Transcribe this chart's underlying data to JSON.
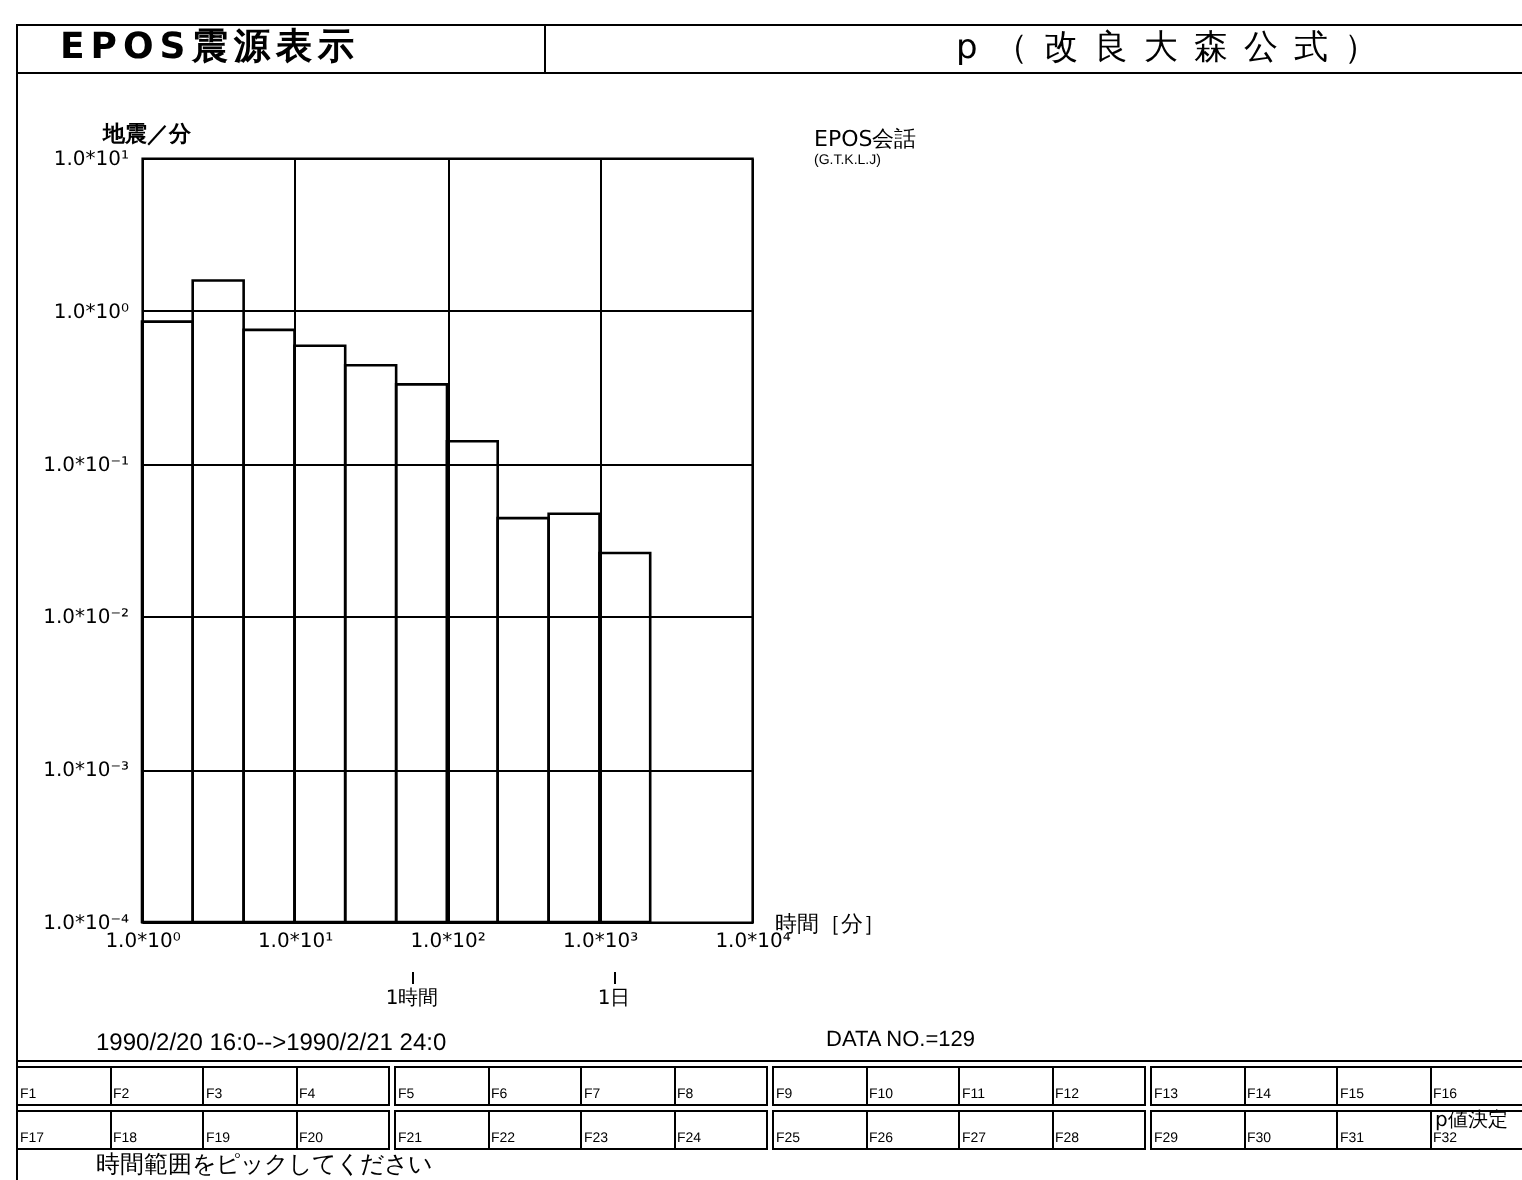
{
  "chart_data": {
    "type": "histogram",
    "title": "EPOS震源表示",
    "subtitle": "p（改良大森公式）",
    "xlabel": "時間［分］",
    "ylabel": "地震／分",
    "bins": [
      1,
      2.15,
      4.64,
      10,
      21.5,
      46.4,
      100,
      215,
      464,
      1000,
      2150
    ],
    "values": [
      0.85,
      1.58,
      0.75,
      0.59,
      0.44,
      0.33,
      0.14,
      0.044,
      0.047,
      0.026
    ],
    "color": "#000000",
    "log": "xy",
    "grid": true,
    "xlim": [
      1,
      10000
    ],
    "ylim": [
      0.0001,
      10
    ],
    "xticks": [
      {
        "value": 1,
        "label": "1.0*10⁰"
      },
      {
        "value": 10,
        "label": "1.0*10¹"
      },
      {
        "value": 100,
        "label": "1.0*10²"
      },
      {
        "value": 1000,
        "label": "1.0*10³"
      },
      {
        "value": 10000,
        "label": "1.0*10⁴"
      }
    ],
    "yticks": [
      {
        "value": 0.0001,
        "label": "1.0*10⁻⁴"
      },
      {
        "value": 0.001,
        "label": "1.0*10⁻³"
      },
      {
        "value": 0.01,
        "label": "1.0*10⁻²"
      },
      {
        "value": 0.1,
        "label": "1.0*10⁻¹"
      },
      {
        "value": 1,
        "label": "1.0*10⁰"
      },
      {
        "value": 10,
        "label": "1.0*10¹"
      }
    ],
    "annotations": [
      "EPOS会話",
      "(G.T.K.L.J)",
      "1990/2/20 16:0-->1990/2/21 24:0",
      "DATA NO.=129",
      "F1",
      "F2",
      "F3",
      "F4",
      "F5",
      "F6",
      "F7",
      "F8",
      "F9",
      "F10",
      "F11",
      "F12",
      "F13",
      "F14",
      "F15",
      "F16",
      "F17",
      "F18",
      "F19",
      "F20",
      "F21",
      "F22",
      "F23",
      "F24",
      "F25",
      "F26",
      "F27",
      "F28",
      "F29",
      "F30",
      "F31",
      "F32",
      "p値決定",
      "時間範囲をピックしてください",
      "1時間",
      "1日"
    ]
  }
}
